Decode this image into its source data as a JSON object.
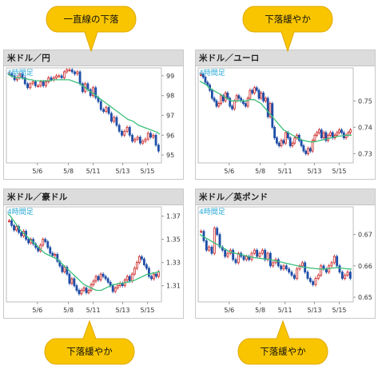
{
  "panels": [
    {
      "title": "米ドル／円"
    },
    {
      "title": "米ドル／ユーロ"
    },
    {
      "title": "米ドル／豪ドル"
    },
    {
      "title": "米ドル／英ポンド"
    }
  ],
  "callouts": {
    "top_left": "一直線の下落",
    "top_right": "下落緩やか",
    "bottom_left": "下落緩やか",
    "bottom_right": "下落緩やか"
  },
  "colors": {
    "up": "#cc2222",
    "down": "#1f4fa8",
    "ma": "#3bbf7a",
    "callout": "#f8c500",
    "callout_border": "#e0a800",
    "tag": "#2aa9d6"
  },
  "chart_data": [
    {
      "type": "candlestick",
      "title": "米ドル／円",
      "tag": "4時間足",
      "x_tick_labels": [
        "5/6",
        "5/8",
        "5/11",
        "5/13",
        "5/15"
      ],
      "y_tick_labels": [
        "99",
        "98",
        "97",
        "96",
        "95"
      ],
      "ylim": [
        94.6,
        99.4
      ],
      "close": [
        99.1,
        99.0,
        98.8,
        98.9,
        99.1,
        98.9,
        98.6,
        98.4,
        98.6,
        98.7,
        98.5,
        98.5,
        98.7,
        98.5,
        98.7,
        98.9,
        98.8,
        98.9,
        99.0,
        99.0,
        98.9,
        99.2,
        99.3,
        99.3,
        99.2,
        99.1,
        99.2,
        98.6,
        98.2,
        98.6,
        98.3,
        98.0,
        98.4,
        97.9,
        97.7,
        97.3,
        97.2,
        97.4,
        97.1,
        96.7,
        96.9,
        96.5,
        96.2,
        96.0,
        96.2,
        96.4,
        96.0,
        95.7,
        95.8,
        95.9,
        95.6,
        95.7,
        95.8,
        96.1,
        95.9,
        96.0,
        95.5,
        95.2
      ],
      "ma": [
        99.1,
        99.0,
        98.95,
        98.9,
        98.9,
        98.9,
        98.85,
        98.85,
        98.8,
        98.8,
        98.75,
        98.75,
        98.75,
        98.75,
        98.75,
        98.75,
        98.75,
        98.8,
        98.8,
        98.8,
        98.8,
        98.8,
        98.8,
        98.8,
        98.75,
        98.7,
        98.65,
        98.6,
        98.5,
        98.4,
        98.3,
        98.2,
        98.1,
        98.0,
        97.9,
        97.8,
        97.7,
        97.6,
        97.5,
        97.4,
        97.3,
        97.2,
        97.1,
        97.0,
        96.9,
        96.8,
        96.75,
        96.7,
        96.6,
        96.5,
        96.45,
        96.4,
        96.35,
        96.3,
        96.25,
        96.2,
        96.15,
        96.05
      ]
    },
    {
      "type": "candlestick",
      "title": "米ドル／ユーロ",
      "tag": "4時間足",
      "x_tick_labels": [
        "5/6",
        "5/8",
        "5/11",
        "5/13",
        "5/15"
      ],
      "y_tick_labels": [
        "0.75",
        "0.74",
        "0.73"
      ],
      "ylim": [
        0.7265,
        0.7625
      ],
      "close": [
        0.76,
        0.759,
        0.757,
        0.756,
        0.754,
        0.751,
        0.75,
        0.748,
        0.749,
        0.752,
        0.75,
        0.753,
        0.751,
        0.748,
        0.747,
        0.75,
        0.752,
        0.751,
        0.75,
        0.749,
        0.748,
        0.751,
        0.754,
        0.753,
        0.755,
        0.754,
        0.751,
        0.753,
        0.75,
        0.751,
        0.744,
        0.749,
        0.74,
        0.736,
        0.734,
        0.733,
        0.735,
        0.734,
        0.738,
        0.736,
        0.733,
        0.734,
        0.736,
        0.737,
        0.735,
        0.733,
        0.731,
        0.73,
        0.732,
        0.731,
        0.735,
        0.737,
        0.738,
        0.739,
        0.736,
        0.738,
        0.735,
        0.737,
        0.738,
        0.736,
        0.737,
        0.738,
        0.739,
        0.738,
        0.736,
        0.737,
        0.738,
        0.739
      ],
      "ma": [
        0.7575,
        0.757,
        0.7565,
        0.756,
        0.755,
        0.7545,
        0.754,
        0.7535,
        0.753,
        0.7525,
        0.752,
        0.7515,
        0.751,
        0.7505,
        0.75,
        0.75,
        0.75,
        0.75,
        0.75,
        0.75,
        0.75,
        0.75,
        0.7505,
        0.7505,
        0.7505,
        0.75,
        0.7495,
        0.749,
        0.748,
        0.747,
        0.746,
        0.745,
        0.744,
        0.743,
        0.742,
        0.741,
        0.74,
        0.739,
        0.7385,
        0.738,
        0.7375,
        0.737,
        0.7365,
        0.736,
        0.7355,
        0.7352,
        0.735,
        0.7348,
        0.7346,
        0.7345,
        0.7345,
        0.7346,
        0.7348,
        0.735,
        0.7352,
        0.7354,
        0.7356,
        0.7358,
        0.736,
        0.7362,
        0.7364,
        0.7366,
        0.7367,
        0.7368,
        0.7369,
        0.737,
        0.737,
        0.737
      ]
    },
    {
      "type": "candlestick",
      "title": "米ドル／豪ドル",
      "tag": "4時間足",
      "x_tick_labels": [
        "5/6",
        "5/8",
        "5/11",
        "5/13",
        "5/15"
      ],
      "y_tick_labels": [
        "1.37",
        "1.35",
        "1.33",
        "1.31"
      ],
      "ylim": [
        1.296,
        1.378
      ],
      "close": [
        1.366,
        1.362,
        1.358,
        1.361,
        1.356,
        1.353,
        1.357,
        1.35,
        1.347,
        1.35,
        1.346,
        1.343,
        1.34,
        1.345,
        1.35,
        1.348,
        1.343,
        1.338,
        1.336,
        1.337,
        1.331,
        1.327,
        1.322,
        1.326,
        1.32,
        1.312,
        1.316,
        1.31,
        1.306,
        1.303,
        1.306,
        1.308,
        1.304,
        1.306,
        1.311,
        1.314,
        1.318,
        1.315,
        1.32,
        1.318,
        1.316,
        1.313,
        1.31,
        1.305,
        1.308,
        1.31,
        1.312,
        1.31,
        1.315,
        1.318,
        1.314,
        1.32,
        1.325,
        1.33,
        1.335,
        1.333,
        1.328,
        1.325,
        1.318,
        1.316,
        1.32,
        1.318,
        1.322
      ],
      "ma": [
        1.372,
        1.37,
        1.367,
        1.364,
        1.361,
        1.358,
        1.356,
        1.354,
        1.352,
        1.35,
        1.348,
        1.346,
        1.344,
        1.342,
        1.34,
        1.338,
        1.337,
        1.336,
        1.335,
        1.334,
        1.333,
        1.331,
        1.329,
        1.327,
        1.325,
        1.323,
        1.321,
        1.319,
        1.317,
        1.315,
        1.313,
        1.311,
        1.31,
        1.309,
        1.308,
        1.307,
        1.306,
        1.306,
        1.306,
        1.307,
        1.308,
        1.309,
        1.31,
        1.311,
        1.311,
        1.312,
        1.312,
        1.312,
        1.313,
        1.313,
        1.314,
        1.314,
        1.315,
        1.316,
        1.317,
        1.318,
        1.319,
        1.32,
        1.32,
        1.321,
        1.321,
        1.322,
        1.322
      ]
    },
    {
      "type": "candlestick",
      "title": "米ドル／英ポンド",
      "tag": "4時間足",
      "x_tick_labels": [
        "5/6",
        "5/8",
        "5/11",
        "5/13",
        "5/15"
      ],
      "y_tick_labels": [
        "0.67",
        "0.66",
        "0.65"
      ],
      "ylim": [
        0.6485,
        0.6788
      ],
      "close": [
        0.671,
        0.668,
        0.665,
        0.666,
        0.664,
        0.672,
        0.67,
        0.666,
        0.665,
        0.663,
        0.664,
        0.665,
        0.662,
        0.661,
        0.664,
        0.663,
        0.662,
        0.663,
        0.662,
        0.664,
        0.665,
        0.663,
        0.664,
        0.665,
        0.662,
        0.664,
        0.66,
        0.661,
        0.662,
        0.66,
        0.659,
        0.66,
        0.659,
        0.658,
        0.657,
        0.656,
        0.659,
        0.66,
        0.661,
        0.658,
        0.656,
        0.655,
        0.654,
        0.656,
        0.657,
        0.66,
        0.659,
        0.658,
        0.66,
        0.661,
        0.663,
        0.66,
        0.658,
        0.656,
        0.657,
        0.658,
        0.656
      ],
      "ma": [
        0.67,
        0.6695,
        0.669,
        0.6685,
        0.668,
        0.6675,
        0.667,
        0.6665,
        0.666,
        0.6655,
        0.665,
        0.6645,
        0.6642,
        0.664,
        0.6638,
        0.6636,
        0.6634,
        0.6632,
        0.663,
        0.6628,
        0.6626,
        0.6625,
        0.6624,
        0.6623,
        0.6622,
        0.6621,
        0.662,
        0.6618,
        0.6616,
        0.6614,
        0.6612,
        0.661,
        0.6608,
        0.6606,
        0.6604,
        0.6602,
        0.66,
        0.6598,
        0.6596,
        0.6595,
        0.6594,
        0.6593,
        0.6592,
        0.6591,
        0.659,
        0.659,
        0.659,
        0.6591,
        0.6592,
        0.6593,
        0.6594,
        0.6594,
        0.6593,
        0.6592,
        0.6591,
        0.659,
        0.659
      ]
    }
  ]
}
